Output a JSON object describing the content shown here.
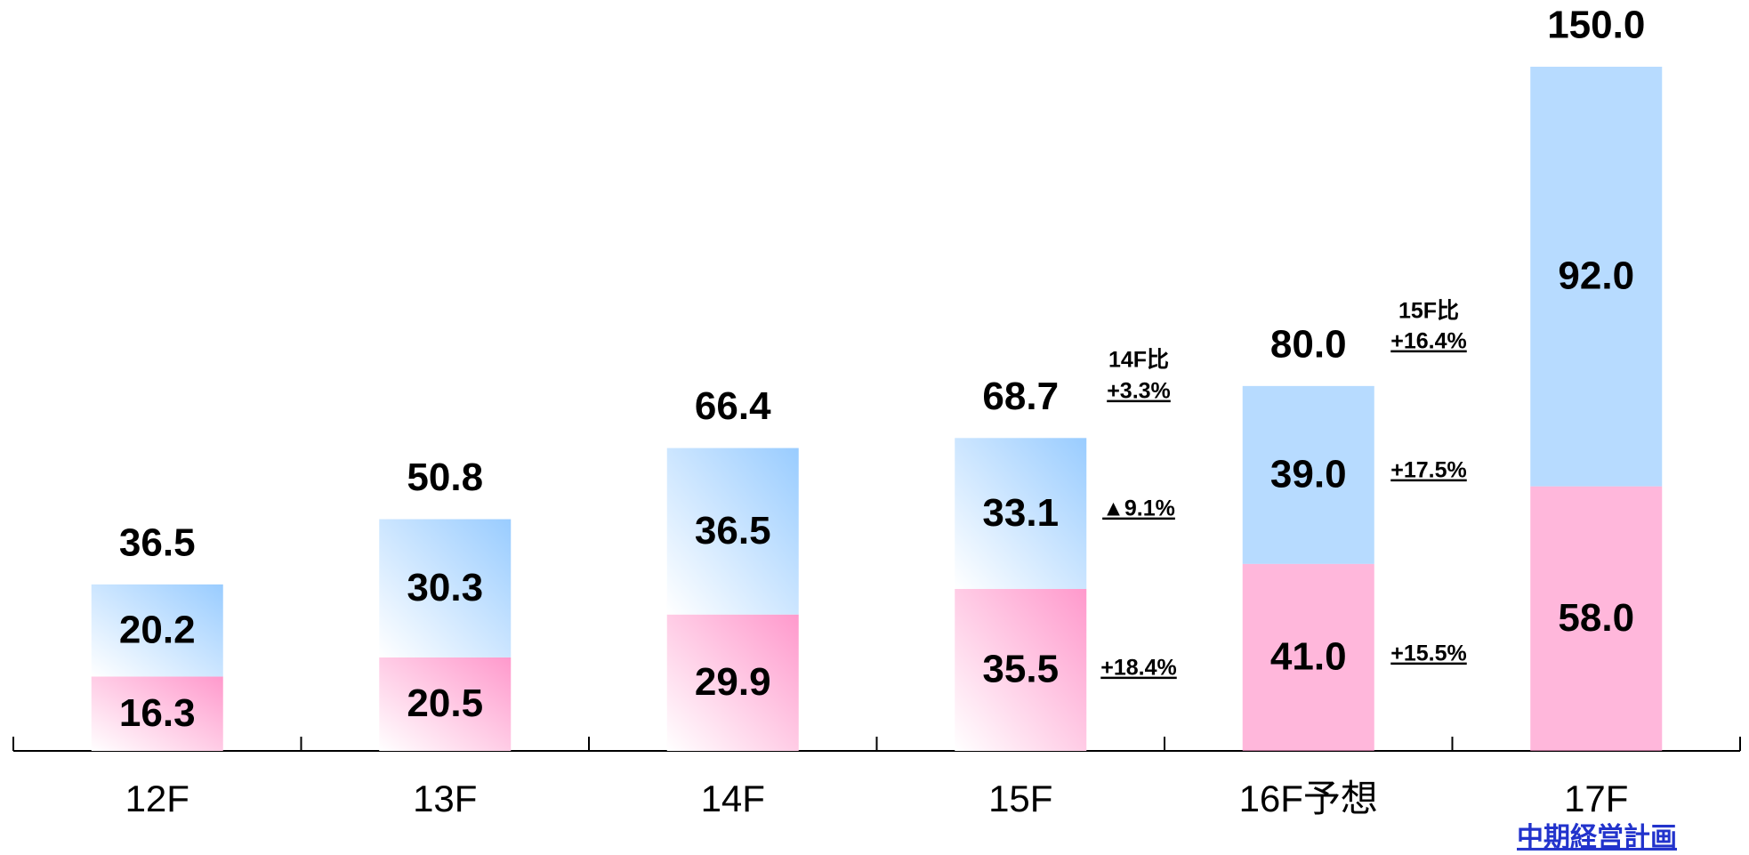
{
  "chart_data": {
    "type": "stacked_bar",
    "categories": [
      "12F",
      "13F",
      "14F",
      "15F",
      "16F予想",
      "17F"
    ],
    "series": [
      {
        "color": "#ff99cc",
        "values": [
          16.3,
          20.5,
          29.9,
          35.5,
          41.0,
          58.0
        ],
        "value_labels": [
          "16.3",
          "20.5",
          "29.9",
          "35.5",
          "41.0",
          "58.0"
        ]
      },
      {
        "color": "#99ccff",
        "values": [
          20.2,
          30.3,
          36.5,
          33.1,
          39.0,
          92.0
        ],
        "value_labels": [
          "20.2",
          "30.3",
          "36.5",
          "33.1",
          "39.0",
          "92.0"
        ]
      }
    ],
    "totals": [
      36.5,
      50.8,
      66.4,
      68.7,
      80.0,
      150.0
    ],
    "total_labels": [
      "36.5",
      "50.8",
      "66.4",
      "68.7",
      "80.0",
      "150.0"
    ],
    "ylim": [
      0,
      150
    ],
    "annotations": [
      "14F比",
      "+3.3%",
      "▲9.1%",
      "+18.4%",
      "15F比",
      "+16.4%",
      "+17.5%",
      "+15.5%",
      "中期経営計画"
    ]
  }
}
